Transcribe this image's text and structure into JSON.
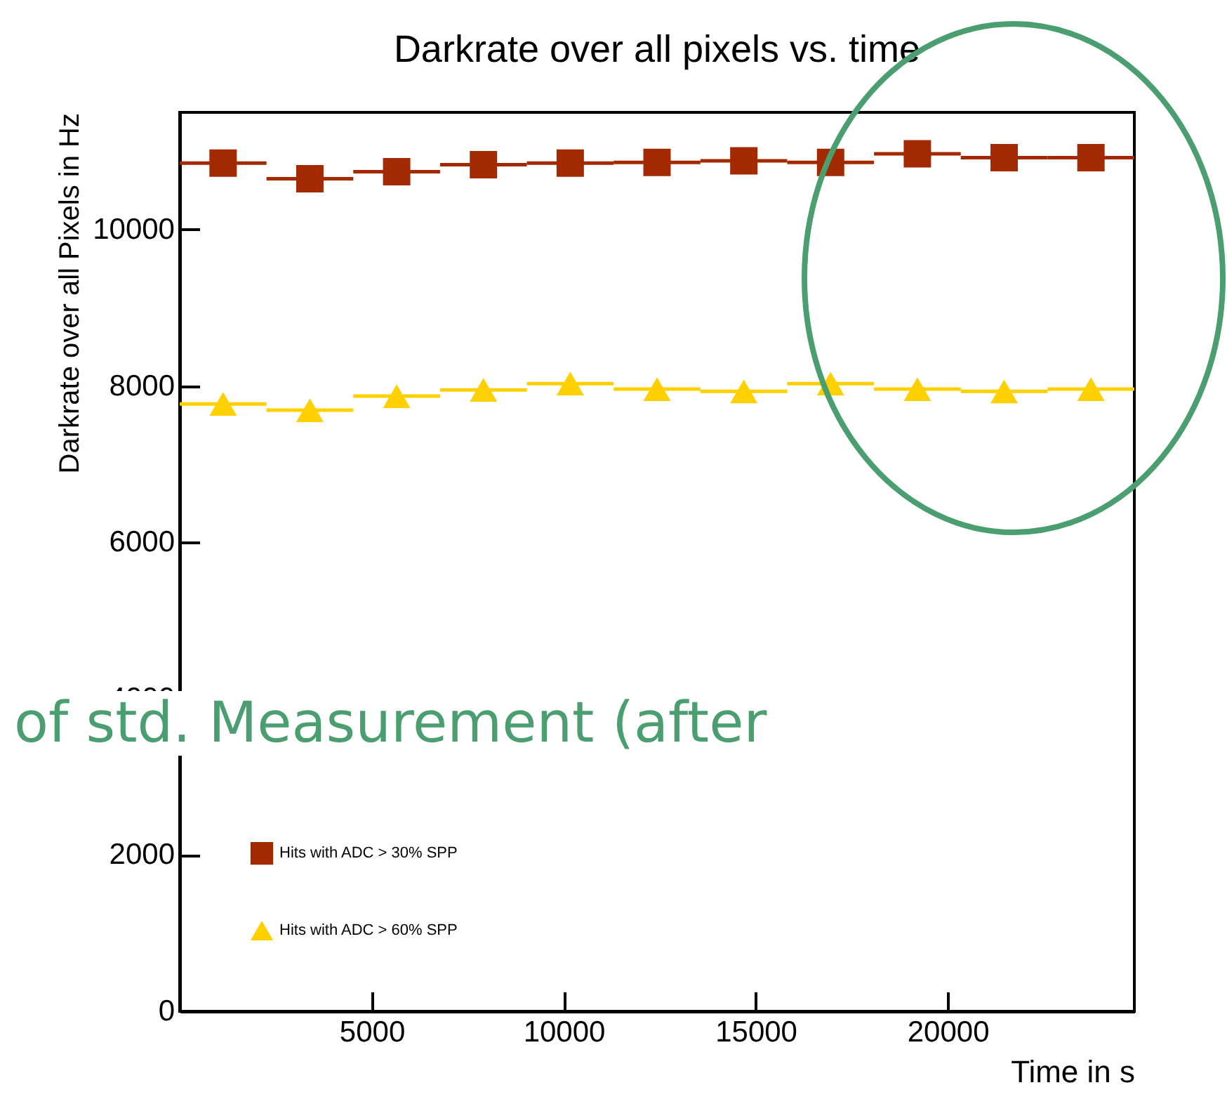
{
  "chart_data": {
    "type": "scatter",
    "title": "Darkrate over all pixels vs. time",
    "xlabel": "Time in s",
    "ylabel": "Darkrate over all Pixels in Hz",
    "x": [
      1130,
      3390,
      5650,
      7910,
      10170,
      12430,
      14690,
      16950,
      19210,
      21470,
      23730
    ],
    "series": [
      {
        "name": "Hits with ADC > 30% SPP",
        "color": "#a32a00",
        "marker": "square",
        "values": [
          10850,
          10650,
          10740,
          10830,
          10850,
          10860,
          10880,
          10860,
          10970,
          10920,
          10920
        ],
        "xerrors": [
          1130,
          1130,
          1130,
          1130,
          1130,
          1130,
          1130,
          1130,
          1130,
          1130,
          1130
        ]
      },
      {
        "name": "Hits with ADC > 60% SPP",
        "color": "#ffd000",
        "marker": "triangle",
        "values": [
          7770,
          7690,
          7870,
          7950,
          8030,
          7960,
          7930,
          8030,
          7960,
          7930,
          7960
        ],
        "xerrors": [
          1130,
          1130,
          1130,
          1130,
          1130,
          1130,
          1130,
          1130,
          1130,
          1130,
          1130
        ]
      }
    ],
    "xlim": [
      0,
      24860
    ],
    "xticks": [
      5000,
      10000,
      15000,
      20000
    ],
    "ylim": [
      0,
      11500
    ],
    "yticks": [
      0,
      2000,
      4000,
      6000,
      8000,
      10000
    ],
    "legend": "bottom left",
    "annotations": [
      "of std. Measurement (after"
    ]
  }
}
